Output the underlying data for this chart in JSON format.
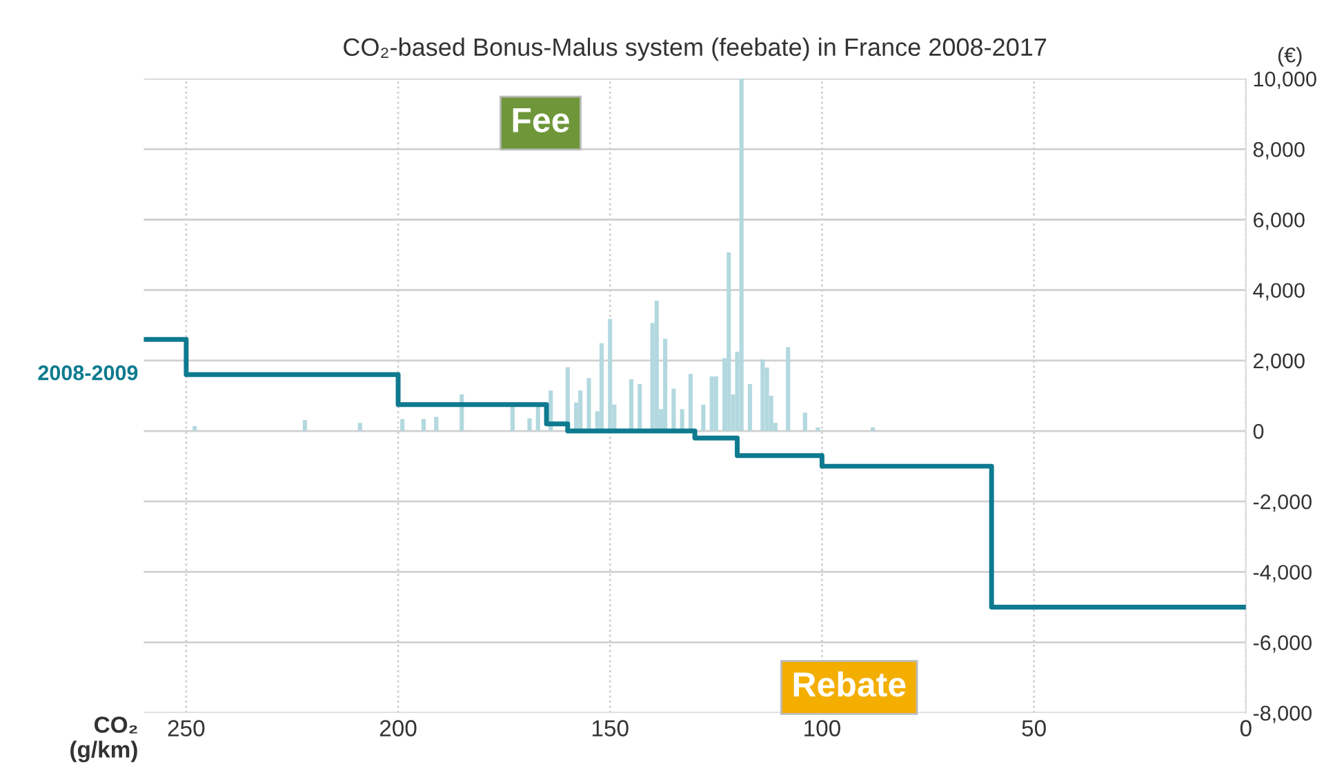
{
  "chart_data": {
    "type": "step",
    "title": "CO₂-based Bonus-Malus system (feebate) in France 2008-2017",
    "xlabel": "CO₂\n(g/km)",
    "ylabel": "(€)",
    "xlim": [
      260,
      0
    ],
    "xticks": [
      250,
      200,
      150,
      100,
      50,
      0
    ],
    "ylim": [
      -8000,
      10000
    ],
    "yticks": [
      {
        "value": -8000,
        "label": "-8,000"
      },
      {
        "value": -6000,
        "label": "-6,000"
      },
      {
        "value": -4000,
        "label": "-4,000"
      },
      {
        "value": -2000,
        "label": "-2,000"
      },
      0,
      {
        "value": 2000,
        "label": "2,000"
      },
      {
        "value": 4000,
        "label": "4,000"
      },
      {
        "value": 6000,
        "label": "6,000"
      },
      {
        "value": 8000,
        "label": "8,000"
      },
      {
        "value": 10000,
        "label": "10,000"
      }
    ],
    "grid": true,
    "legend": false,
    "annotations": [
      "Fee",
      "Rebate"
    ],
    "series": [
      {
        "type": "bar",
        "color": "#b3d8df",
        "x": [
          248,
          222,
          209,
          199,
          194,
          191,
          185,
          173,
          169,
          167,
          164,
          160,
          158,
          157,
          155,
          153,
          152,
          150,
          149,
          145,
          143,
          140,
          139,
          138,
          137,
          135,
          133,
          131,
          128,
          126,
          125,
          123,
          122,
          121,
          120,
          119,
          117,
          114,
          113,
          112,
          111,
          108,
          104,
          101,
          88
        ],
        "values": [
          140,
          310,
          230,
          340,
          340,
          400,
          1040,
          690,
          360,
          690,
          1150,
          1810,
          810,
          1150,
          1500,
          560,
          2490,
          3180,
          750,
          1470,
          1330,
          3070,
          3700,
          620,
          2620,
          1200,
          620,
          1620,
          750,
          1550,
          1550,
          2070,
          5070,
          1040,
          2250,
          10000,
          1330,
          2030,
          1800,
          1000,
          230,
          2380,
          520,
          100,
          100
        ]
      },
      {
        "name": "2008-2009",
        "color": "#0e7a8f",
        "x": [
          260,
          250,
          200,
          165,
          160,
          130,
          120,
          100,
          60,
          0
        ],
        "values": [
          2600,
          1600,
          750,
          200,
          0,
          -200,
          -700,
          -1000,
          -5000,
          -5000
        ]
      }
    ]
  }
}
